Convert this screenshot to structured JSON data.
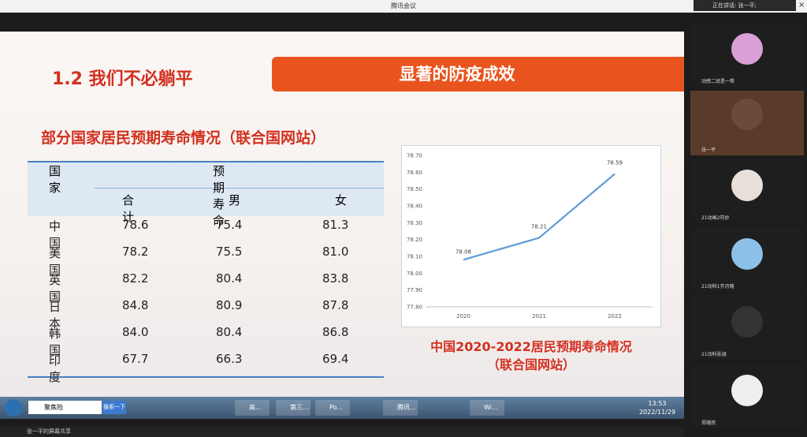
{
  "window": {
    "title": "腾讯会议",
    "speaking": "正在讲话: 张一平;",
    "share_label": "张一平的屏幕共享"
  },
  "slide": {
    "section": "1.2 我们不必躺平",
    "banner": "显著的防疫成效",
    "table_title": "部分国家居民预期寿命情况（联合国网站）",
    "table": {
      "header": [
        "国家",
        "预期寿命"
      ],
      "subheader": [
        "合计",
        "男",
        "女"
      ],
      "rows": [
        [
          "中国",
          "78.6",
          "75.4",
          "81.3"
        ],
        [
          "美国",
          "78.2",
          "75.5",
          "81.0"
        ],
        [
          "英国",
          "82.2",
          "80.4",
          "83.8"
        ],
        [
          "日本",
          "84.8",
          "80.9",
          "87.8"
        ],
        [
          "韩国",
          "84.0",
          "80.4",
          "86.8"
        ],
        [
          "印度",
          "67.7",
          "66.3",
          "69.4"
        ]
      ]
    },
    "chart": {
      "type": "line",
      "categories": [
        "2020",
        "2021",
        "2022"
      ],
      "values": [
        78.08,
        78.21,
        78.59
      ],
      "color": "#5b9bd5",
      "ylim": [
        77.8,
        78.7
      ],
      "yticks": [
        {
          "value": 77.8,
          "label": "77.80"
        },
        {
          "value": 77.9,
          "label": "77.90"
        },
        {
          "value": 78.0,
          "label": "78.00"
        },
        {
          "value": 78.1,
          "label": "78.10"
        },
        {
          "value": 78.2,
          "label": "78.20"
        },
        {
          "value": 78.3,
          "label": "78.30"
        },
        {
          "value": 78.4,
          "label": "78.40"
        },
        {
          "value": 78.5,
          "label": "78.50"
        },
        {
          "value": 78.6,
          "label": "78.60"
        },
        {
          "value": 78.7,
          "label": "78.70"
        }
      ]
    },
    "caption": [
      "中国2020-2022居民预期寿命情况",
      "（联合国网站）"
    ]
  },
  "participants": [
    "动感二班是一帮",
    "张一平",
    "21动画2符妙",
    "21动科1齐月随",
    "21动科张涵",
    "郑瀚然"
  ],
  "taskbar": {
    "search": "聚焦险",
    "search_button": "搜索一下",
    "items": [
      "高...",
      "第三...",
      "Po...",
      "腾讯...",
      "Wi..."
    ],
    "time": "13:53",
    "date": "2022/11/29"
  }
}
